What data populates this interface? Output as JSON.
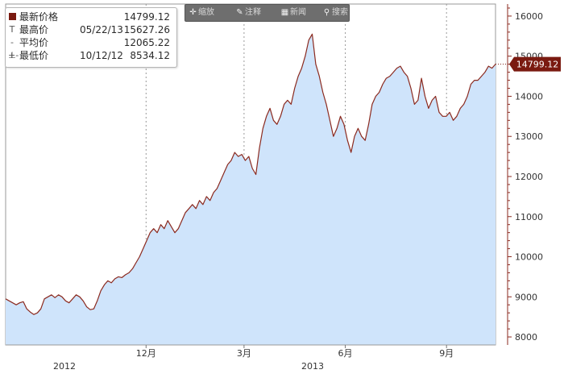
{
  "legend": {
    "rows": [
      {
        "mark": "square",
        "name": "最新价格",
        "date": "",
        "value": "14799.12"
      },
      {
        "mark": "T",
        "name": "最高价",
        "date": "05/22/13",
        "value": "15627.26"
      },
      {
        "mark": "-+-",
        "name": "平均价",
        "date": "",
        "value": "12065.22"
      },
      {
        "mark": "⊥",
        "name": "最低价",
        "date": "10/12/12",
        "value": "8534.12"
      }
    ]
  },
  "toolbar": {
    "items": [
      {
        "icon": "plus-icon",
        "glyph": "✛",
        "label": "缩放"
      },
      {
        "icon": "pencil-icon",
        "glyph": "✎",
        "label": "注释"
      },
      {
        "icon": "table-icon",
        "glyph": "▦",
        "label": "新闻"
      },
      {
        "icon": "magnifier-icon",
        "glyph": "⚲",
        "label": "搜索"
      }
    ]
  },
  "colors": {
    "line": "#8b2a1f",
    "area": "#cfe4fb",
    "tag": "#7a1a10",
    "axis": "#8b2a1f"
  },
  "chart_data": {
    "type": "area",
    "ylim": [
      7800,
      16300
    ],
    "ytick_values": [
      8000,
      9000,
      10000,
      11000,
      12000,
      13000,
      14000,
      15000,
      16000
    ],
    "ytick_labels": [
      "8000",
      "9000",
      "10000",
      "11000",
      "12000",
      "13000",
      "14000",
      "15000",
      "16000"
    ],
    "xticks": [
      {
        "x": 43,
        "label": "12月"
      },
      {
        "x": 73,
        "label": "3月"
      },
      {
        "x": 104,
        "label": "6月"
      },
      {
        "x": 135,
        "label": "9月"
      }
    ],
    "year_labels": [
      {
        "x": 18,
        "label": "2012"
      },
      {
        "x": 94,
        "label": "2013"
      }
    ],
    "xlim": [
      0,
      150
    ],
    "last_value_label": "14799.12",
    "grid": "vertical dashed at month ticks",
    "series": [
      {
        "values": [
          8950,
          8900,
          8850,
          8800,
          8850,
          8880,
          8700,
          8620,
          8560,
          8600,
          8700,
          8950,
          9000,
          9050,
          8980,
          9050,
          9000,
          8900,
          8850,
          8950,
          9050,
          9000,
          8900,
          8750,
          8680,
          8700,
          8900,
          9150,
          9300,
          9400,
          9350,
          9450,
          9500,
          9480,
          9550,
          9600,
          9700,
          9850,
          10000,
          10200,
          10400,
          10600,
          10700,
          10600,
          10800,
          10700,
          10900,
          10750,
          10600,
          10700,
          10900,
          11100,
          11200,
          11300,
          11200,
          11400,
          11300,
          11500,
          11400,
          11600,
          11700,
          11900,
          12100,
          12300,
          12400,
          12600,
          12500,
          12550,
          12400,
          12500,
          12200,
          12050,
          12700,
          13200,
          13500,
          13700,
          13400,
          13300,
          13500,
          13800,
          13900,
          13800,
          14200,
          14500,
          14700,
          15000,
          15400,
          15550,
          14800,
          14500,
          14100,
          13800,
          13400,
          13000,
          13200,
          13500,
          13300,
          12900,
          12600,
          13000,
          13200,
          13000,
          12900,
          13300,
          13800,
          14000,
          14100,
          14300,
          14450,
          14500,
          14600,
          14700,
          14750,
          14600,
          14500,
          14200,
          13800,
          13900,
          14450,
          14000,
          13700,
          13900,
          14000,
          13600,
          13500,
          13500,
          13600,
          13400,
          13500,
          13700,
          13800,
          14000,
          14300,
          14400,
          14400,
          14500,
          14600,
          14750,
          14700,
          14800
        ]
      }
    ]
  }
}
